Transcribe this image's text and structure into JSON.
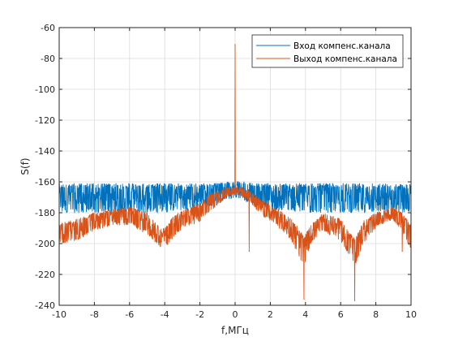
{
  "chart_data": {
    "type": "line",
    "title": "",
    "xlabel": "f,МГц",
    "ylabel": "S(f)",
    "xlim": [
      -10,
      10
    ],
    "ylim": [
      -240,
      -60
    ],
    "xticks": [
      -10,
      -8,
      -6,
      -4,
      -2,
      0,
      2,
      4,
      6,
      8,
      10
    ],
    "yticks": [
      -240,
      -220,
      -200,
      -180,
      -160,
      -140,
      -120,
      -100,
      -80,
      -60
    ],
    "xtick_labels": [
      "-10",
      "-8",
      "-6",
      "-4",
      "-2",
      "0",
      "2",
      "4",
      "6",
      "8",
      "10"
    ],
    "ytick_labels": [
      "-240",
      "-220",
      "-200",
      "-180",
      "-160",
      "-140",
      "-120",
      "-100",
      "-80",
      "-60"
    ],
    "grid": true,
    "legend_position": "top-right",
    "series": [
      {
        "name": "Вход компенс.канала",
        "color": "#0072BD",
        "style": "noise_band",
        "x": [
          -10,
          -8,
          -6,
          -4,
          -2,
          -1,
          -0.5,
          0,
          0.5,
          1,
          2,
          4,
          6,
          8,
          10
        ],
        "low": [
          -180,
          -180,
          -180,
          -180,
          -178,
          -175,
          -172,
          -170,
          -172,
          -175,
          -178,
          -180,
          -180,
          -180,
          -180
        ],
        "high": [
          -161,
          -161,
          -161,
          -161,
          -161,
          -161,
          -160,
          -159,
          -160,
          -161,
          -161,
          -161,
          -161,
          -161,
          -161
        ]
      },
      {
        "name": "Выход компенс.канала",
        "color": "#D95319",
        "style": "noise_band",
        "x": [
          -10,
          -9,
          -8,
          -7,
          -6,
          -5,
          -4.5,
          -4,
          -3.5,
          -3,
          -2,
          -1.5,
          -1,
          -0.5,
          0,
          0.5,
          1,
          1.5,
          2,
          2.5,
          3,
          3.5,
          3.9,
          4.3,
          5,
          6,
          6.8,
          7.3,
          8,
          8.6,
          9,
          9.5,
          10
        ],
        "low": [
          -200,
          -198,
          -192,
          -188,
          -188,
          -194,
          -200,
          -205,
          -196,
          -190,
          -186,
          -180,
          -175,
          -170,
          -168,
          -170,
          -175,
          -182,
          -185,
          -190,
          -195,
          -205,
          -215,
          -200,
          -192,
          -198,
          -215,
          -200,
          -190,
          -186,
          -185,
          -192,
          -205
        ],
        "high": [
          -187,
          -184,
          -180,
          -178,
          -176,
          -180,
          -187,
          -190,
          -182,
          -178,
          -174,
          -168,
          -166,
          -164,
          -163,
          -164,
          -167,
          -172,
          -175,
          -178,
          -182,
          -188,
          -195,
          -188,
          -180,
          -184,
          -197,
          -185,
          -180,
          -178,
          -176,
          -180,
          -188
        ],
        "peaks": [
          {
            "x": 0,
            "y": -71
          },
          {
            "x": 0.8,
            "y": -205
          },
          {
            "x": 3.92,
            "y": -236
          },
          {
            "x": 6.8,
            "y": -237
          },
          {
            "x": 9.5,
            "y": -205
          }
        ]
      }
    ]
  }
}
